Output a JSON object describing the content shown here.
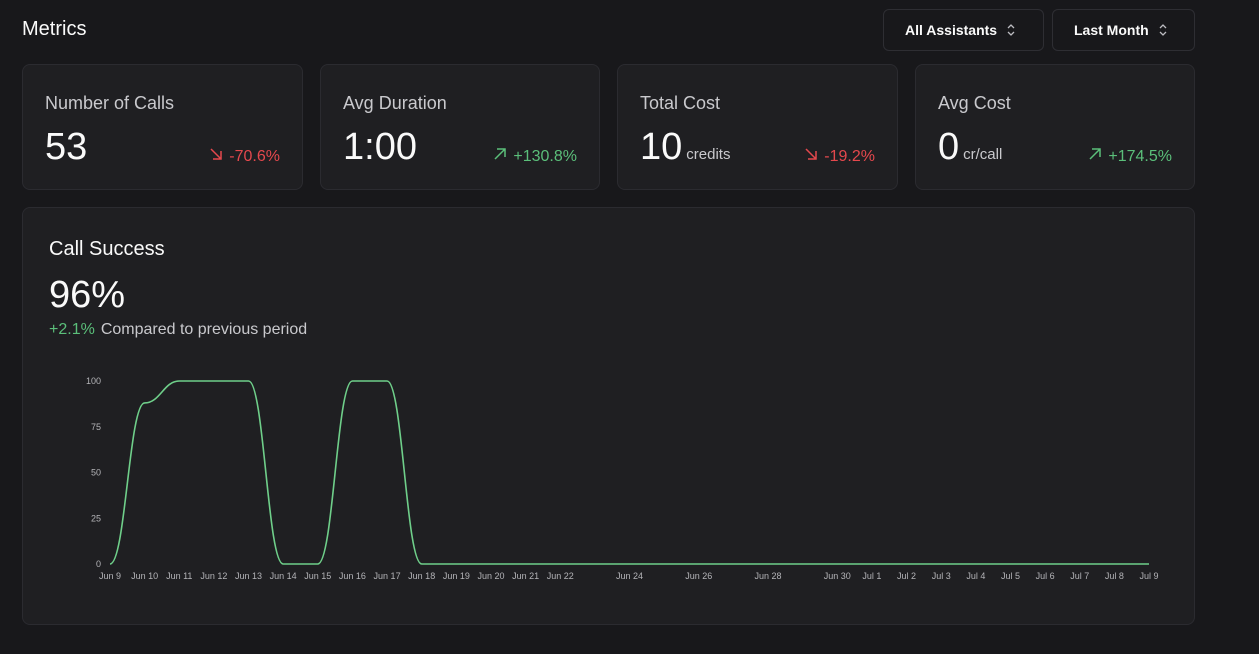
{
  "header": {
    "title": "Metrics",
    "assistant_filter": "All Assistants",
    "period_filter": "Last Month"
  },
  "cards": [
    {
      "label": "Number of Calls",
      "value": "53",
      "unit": "",
      "delta": "-70.6%",
      "trend": "down"
    },
    {
      "label": "Avg Duration",
      "value": "1:00",
      "unit": "",
      "delta": "+130.8%",
      "trend": "up"
    },
    {
      "label": "Total Cost",
      "value": "10",
      "unit": "credits",
      "delta": "-19.2%",
      "trend": "down"
    },
    {
      "label": "Avg Cost",
      "value": "0",
      "unit": "cr/call",
      "delta": "+174.5%",
      "trend": "up"
    }
  ],
  "call_success": {
    "title": "Call Success",
    "value": "96%",
    "change": "+2.1%",
    "compare_text": "Compared to previous period"
  },
  "colors": {
    "positive": "#5bbf7a",
    "negative": "#e5484d",
    "line": "#6fcf8a"
  },
  "chart_data": {
    "type": "line",
    "title": "",
    "xlabel": "",
    "ylabel": "",
    "ylim": [
      0,
      100
    ],
    "yticks": [
      0,
      25,
      50,
      75,
      100
    ],
    "x_tick_labels": [
      {
        "day": 0,
        "label": "Jun 9"
      },
      {
        "day": 1,
        "label": "Jun 10"
      },
      {
        "day": 2,
        "label": "Jun 11"
      },
      {
        "day": 3,
        "label": "Jun 12"
      },
      {
        "day": 4,
        "label": "Jun 13"
      },
      {
        "day": 5,
        "label": "Jun 14"
      },
      {
        "day": 6,
        "label": "Jun 15"
      },
      {
        "day": 7,
        "label": "Jun 16"
      },
      {
        "day": 8,
        "label": "Jun 17"
      },
      {
        "day": 9,
        "label": "Jun 18"
      },
      {
        "day": 10,
        "label": "Jun 19"
      },
      {
        "day": 11,
        "label": "Jun 20"
      },
      {
        "day": 12,
        "label": "Jun 21"
      },
      {
        "day": 13,
        "label": "Jun 22"
      },
      {
        "day": 15,
        "label": "Jun 24"
      },
      {
        "day": 17,
        "label": "Jun 26"
      },
      {
        "day": 19,
        "label": "Jun 28"
      },
      {
        "day": 21,
        "label": "Jun 30"
      },
      {
        "day": 22,
        "label": "Jul 1"
      },
      {
        "day": 23,
        "label": "Jul 2"
      },
      {
        "day": 24,
        "label": "Jul 3"
      },
      {
        "day": 25,
        "label": "Jul 4"
      },
      {
        "day": 26,
        "label": "Jul 5"
      },
      {
        "day": 27,
        "label": "Jul 6"
      },
      {
        "day": 28,
        "label": "Jul 7"
      },
      {
        "day": 29,
        "label": "Jul 8"
      },
      {
        "day": 30,
        "label": "Jul 9"
      }
    ],
    "series": [
      {
        "x": [
          "Jun 9",
          "Jun 10",
          "Jun 11",
          "Jun 12",
          "Jun 13",
          "Jun 14",
          "Jun 15",
          "Jun 16",
          "Jun 17",
          "Jun 18",
          "Jun 19",
          "Jun 20",
          "Jun 21",
          "Jun 22",
          "Jun 23",
          "Jun 24",
          "Jun 25",
          "Jun 26",
          "Jun 27",
          "Jun 28",
          "Jun 29",
          "Jun 30",
          "Jul 1",
          "Jul 2",
          "Jul 3",
          "Jul 4",
          "Jul 5",
          "Jul 6",
          "Jul 7",
          "Jul 8",
          "Jul 9"
        ],
        "values": [
          0,
          88,
          100,
          100,
          100,
          0,
          0,
          100,
          100,
          0,
          0,
          0,
          0,
          0,
          0,
          0,
          0,
          0,
          0,
          0,
          0,
          0,
          0,
          0,
          0,
          0,
          0,
          0,
          0,
          0,
          0
        ]
      }
    ],
    "grid": false,
    "legend": "none"
  }
}
